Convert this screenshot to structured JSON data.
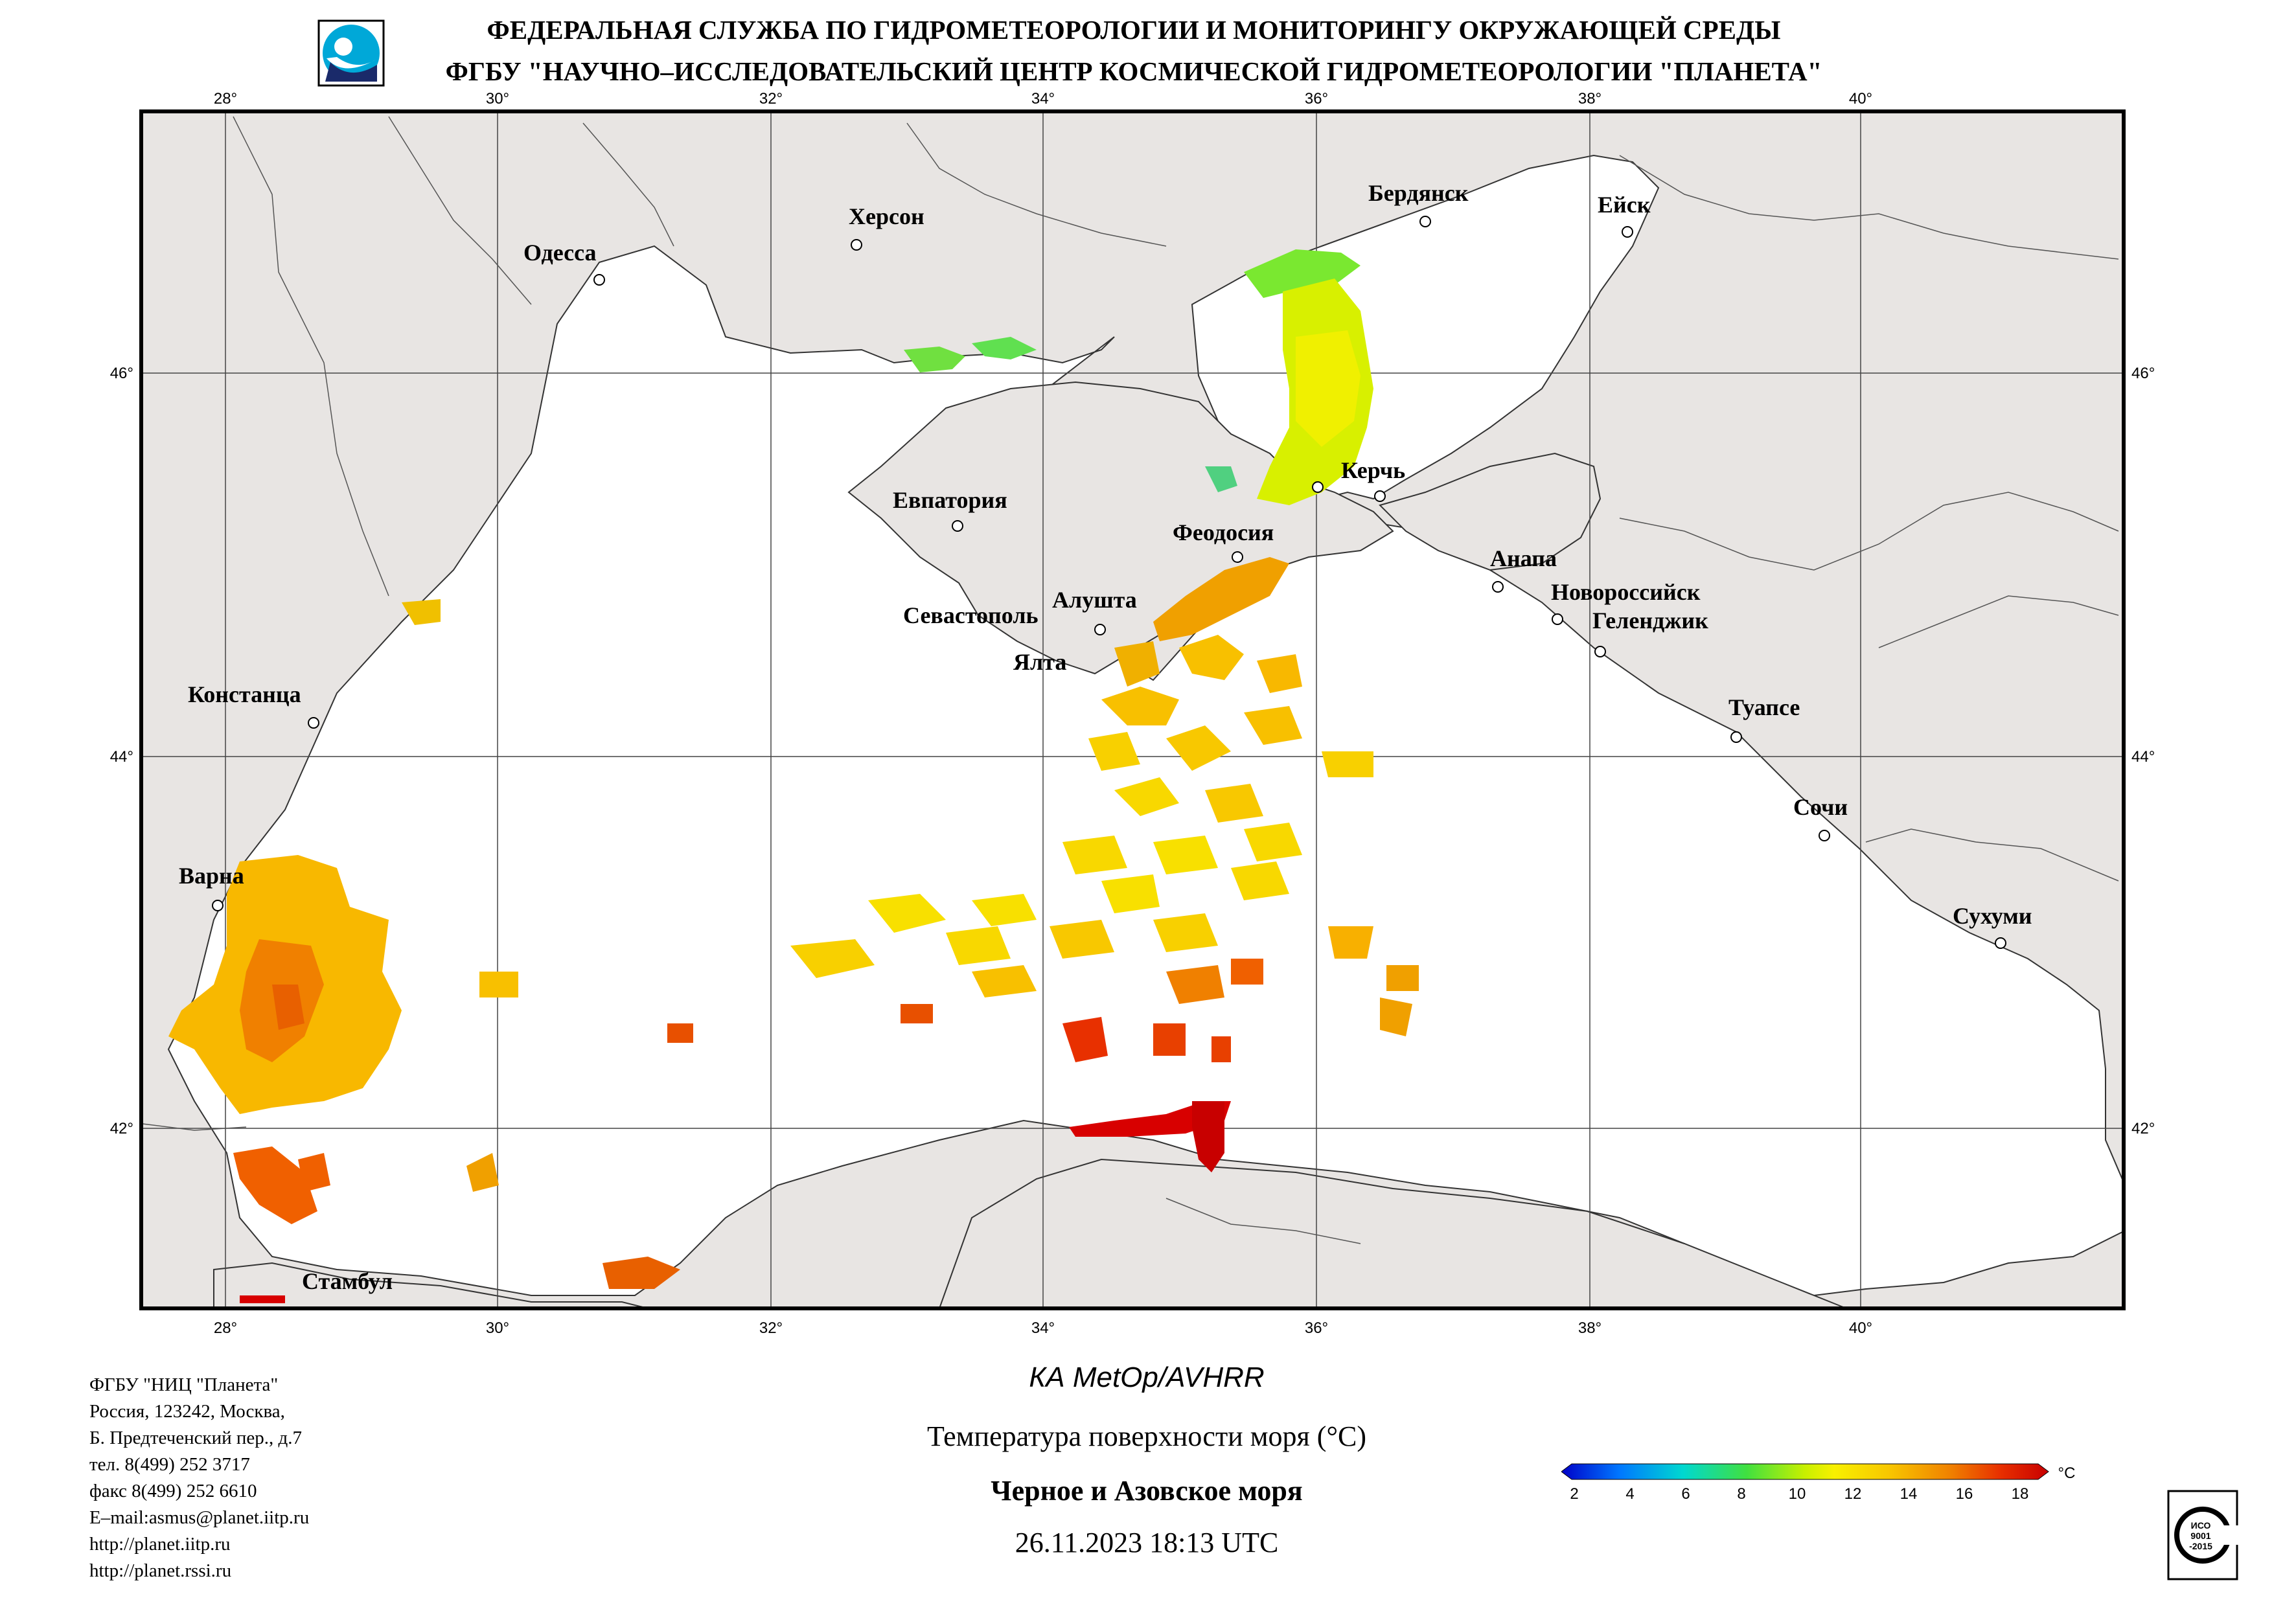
{
  "header": {
    "line1": "ФЕДЕРАЛЬНАЯ СЛУЖБА ПО ГИДРОМЕТЕОРОЛОГИИ И МОНИТОРИНГУ ОКРУЖАЮЩЕЙ СРЕДЫ",
    "line2": "ФГБУ \"НАУЧНО–ИССЛЕДОВАТЕЛЬСКИЙ ЦЕНТР КОСМИЧЕСКОЙ ГИДРОМЕТЕОРОЛОГИИ \"ПЛАНЕТА\""
  },
  "map": {
    "lon_labels": [
      "28°",
      "30°",
      "32°",
      "34°",
      "36°",
      "38°",
      "40°"
    ],
    "lat_labels": [
      "46°",
      "44°",
      "42°"
    ],
    "cities": [
      {
        "id": "odessa",
        "name": "Одесса"
      },
      {
        "id": "kherson",
        "name": "Херсон"
      },
      {
        "id": "berdyansk",
        "name": "Бердянск"
      },
      {
        "id": "eysk",
        "name": "Ейск"
      },
      {
        "id": "evpatoria",
        "name": "Евпатория"
      },
      {
        "id": "kerch",
        "name": "Керчь"
      },
      {
        "id": "feodosia",
        "name": "Феодосия"
      },
      {
        "id": "anapa",
        "name": "Анапа"
      },
      {
        "id": "novorossiysk",
        "name": "Новороссийск"
      },
      {
        "id": "gelendzhik",
        "name": "Геленджик"
      },
      {
        "id": "sevastopol",
        "name": "Севастополь"
      },
      {
        "id": "alushta",
        "name": "Алушта"
      },
      {
        "id": "yalta",
        "name": "Ялта"
      },
      {
        "id": "constanta",
        "name": "Констанца"
      },
      {
        "id": "tuapse",
        "name": "Туапсе"
      },
      {
        "id": "sochi",
        "name": "Сочи"
      },
      {
        "id": "varna",
        "name": "Варна"
      },
      {
        "id": "sukhumi",
        "name": "Сухуми"
      },
      {
        "id": "istanbul",
        "name": "Стамбул"
      }
    ]
  },
  "caption": {
    "satellite": "КА MetOp/AVHRR",
    "product": "Температура поверхности моря (°C)",
    "region": "Черное и Азовское моря",
    "datetime": "26.11.2023 18:13 UTC"
  },
  "contacts": [
    "ФГБУ \"НИЦ \"Планета\"",
    "Россия, 123242, Москва,",
    "Б. Предтеченский пер., д.7",
    "тел. 8(499) 252 3717",
    "факс 8(499) 252 6610",
    "E–mail:asmus@planet.iitp.ru",
    "http://planet.iitp.ru",
    "http://planet.rssi.ru"
  ],
  "colorbar": {
    "ticks": [
      "2",
      "4",
      "6",
      "8",
      "10",
      "12",
      "14",
      "16",
      "18"
    ],
    "unit": "°C",
    "colors": [
      "#0000c8",
      "#0078ff",
      "#00d8d0",
      "#40e040",
      "#c8f000",
      "#f8f000",
      "#f8c800",
      "#f08000",
      "#e83000",
      "#c80000"
    ]
  },
  "iso_badge": {
    "text1": "ИСО",
    "text2": "9001",
    "text3": "-2015"
  }
}
